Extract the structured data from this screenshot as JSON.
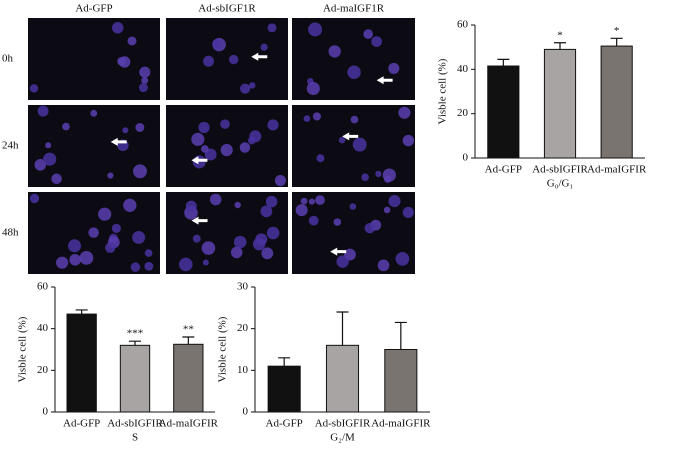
{
  "microscopy": {
    "columns": [
      "Ad-GFP",
      "Ad-sbIGF1R",
      "Ad-maIGF1R"
    ],
    "rows": [
      "0h",
      "24h",
      "48h"
    ]
  },
  "chart_data": [
    {
      "type": "bar",
      "categories": [
        "Ad-GFP",
        "Ad-sbIGFIR",
        "Ad-maIGFIR"
      ],
      "values": [
        41.5,
        49,
        50.5
      ],
      "errors": [
        3,
        3,
        3.5
      ],
      "significance": [
        null,
        "*",
        "*"
      ],
      "colors": [
        "#111111",
        "#a9a4a4",
        "#7a7470"
      ],
      "ylabel": "Visble cell (%)",
      "xlabel": "G₀/G₁",
      "ylim": [
        0,
        60
      ],
      "yticks": [
        0,
        20,
        40,
        60
      ]
    },
    {
      "type": "bar",
      "categories": [
        "Ad-GFP",
        "Ad-sbIGFIR",
        "Ad-maIGFIR"
      ],
      "values": [
        47,
        32,
        32.5
      ],
      "errors": [
        2,
        2,
        3.5
      ],
      "significance": [
        null,
        "***",
        "**"
      ],
      "colors": [
        "#111111",
        "#a9a4a4",
        "#7a7470"
      ],
      "ylabel": "Visble cell (%)",
      "xlabel": "S",
      "ylim": [
        0,
        60
      ],
      "yticks": [
        0,
        20,
        40,
        60
      ]
    },
    {
      "type": "bar",
      "categories": [
        "Ad-GFP",
        "Ad-sbIGFIR",
        "Ad-maIGFIR"
      ],
      "values": [
        11,
        16,
        15
      ],
      "errors": [
        2,
        8,
        6.5
      ],
      "significance": [
        null,
        null,
        null
      ],
      "colors": [
        "#111111",
        "#a9a4a4",
        "#7a7470"
      ],
      "ylabel": "Visble cell (%)",
      "xlabel": "G₂/M",
      "ylim": [
        0,
        30
      ],
      "yticks": [
        0,
        10,
        20,
        30
      ]
    }
  ]
}
